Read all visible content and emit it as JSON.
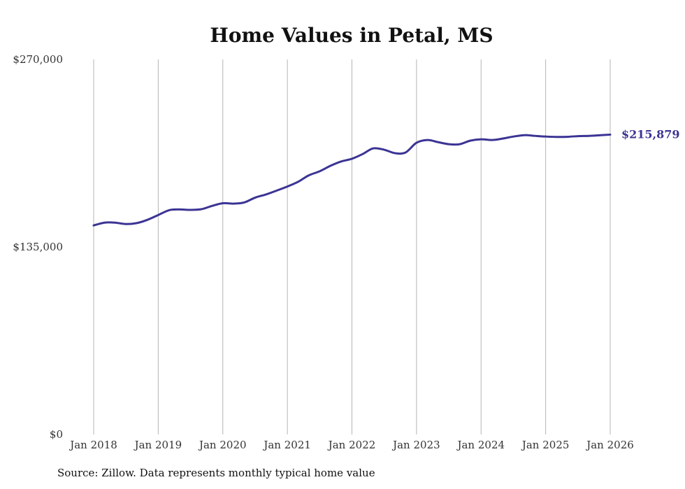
{
  "chart_data": {
    "type": "line",
    "title": "Home Values in Petal, MS",
    "xlabel": "",
    "ylabel": "",
    "ylim": [
      0,
      270000
    ],
    "y_ticks": [
      {
        "value": 0,
        "label": "$0"
      },
      {
        "value": 135000,
        "label": "$135,000"
      },
      {
        "value": 270000,
        "label": "$270,000"
      }
    ],
    "x_ticks": [
      {
        "value": 2018,
        "label": "Jan 2018"
      },
      {
        "value": 2019,
        "label": "Jan 2019"
      },
      {
        "value": 2020,
        "label": "Jan 2020"
      },
      {
        "value": 2021,
        "label": "Jan 2021"
      },
      {
        "value": 2022,
        "label": "Jan 2022"
      },
      {
        "value": 2023,
        "label": "Jan 2023"
      },
      {
        "value": 2024,
        "label": "Jan 2024"
      },
      {
        "value": 2025,
        "label": "Jan 2025"
      },
      {
        "value": 2026,
        "label": "Jan 2026"
      }
    ],
    "xlim": [
      2018,
      2026
    ],
    "grid": "vertical",
    "series": [
      {
        "name": "Typical home value",
        "color": "#3b3494",
        "x": [
          2018.0,
          2018.17,
          2018.33,
          2018.5,
          2018.67,
          2018.83,
          2019.0,
          2019.17,
          2019.33,
          2019.5,
          2019.67,
          2019.83,
          2020.0,
          2020.17,
          2020.33,
          2020.5,
          2020.67,
          2020.83,
          2021.0,
          2021.17,
          2021.33,
          2021.5,
          2021.67,
          2021.83,
          2022.0,
          2022.17,
          2022.33,
          2022.5,
          2022.67,
          2022.83,
          2023.0,
          2023.17,
          2023.33,
          2023.5,
          2023.67,
          2023.83,
          2024.0,
          2024.17,
          2024.33,
          2024.5,
          2024.67,
          2024.83,
          2025.0,
          2025.17,
          2025.33,
          2025.5,
          2025.67,
          2025.83,
          2026.0
        ],
        "values": [
          150500,
          152500,
          152500,
          151500,
          152200,
          154500,
          158000,
          161500,
          162000,
          161700,
          162200,
          164500,
          166500,
          166200,
          167000,
          170500,
          172800,
          175500,
          178500,
          182000,
          186500,
          189500,
          193500,
          196500,
          198500,
          202000,
          206000,
          205000,
          202500,
          203000,
          210000,
          212000,
          210500,
          209000,
          209000,
          211500,
          212500,
          212000,
          213000,
          214500,
          215500,
          215000,
          214500,
          214200,
          214300,
          214800,
          215000,
          215400,
          215879
        ]
      }
    ],
    "end_label": "$215,879",
    "source": "Source: Zillow. Data represents monthly typical home value"
  }
}
